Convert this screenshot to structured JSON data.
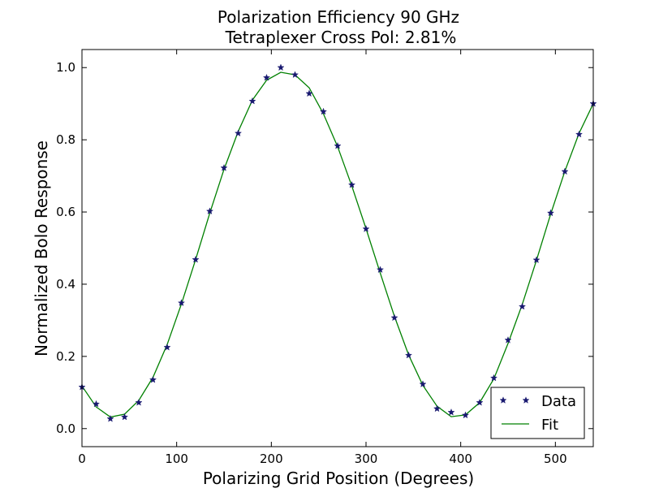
{
  "chart_data": {
    "type": "scatter",
    "title": [
      "Polarization Efficiency 90 GHz",
      "Tetraplexer Cross Pol: 2.81%"
    ],
    "xlabel": "Polarizing Grid Position (Degrees)",
    "ylabel": "Normalized Bolo Response",
    "xlim": [
      0,
      540
    ],
    "ylim": [
      -0.05,
      1.05
    ],
    "xticks": [
      0,
      100,
      200,
      300,
      400,
      500
    ],
    "xtick_labels": [
      "0",
      "100",
      "200",
      "300",
      "400",
      "500"
    ],
    "yticks": [
      0.0,
      0.2,
      0.4,
      0.6,
      0.8,
      1.0
    ],
    "ytick_labels": [
      "0.0",
      "0.2",
      "0.4",
      "0.6",
      "0.8",
      "1.0"
    ],
    "grid": false,
    "legend_position": "lower-right",
    "series": [
      {
        "name": "Data",
        "kind": "scatter",
        "marker": "star",
        "color": "#191970",
        "x": [
          0,
          15,
          30,
          45,
          60,
          75,
          90,
          105,
          120,
          135,
          150,
          165,
          180,
          195,
          210,
          225,
          240,
          255,
          270,
          285,
          300,
          315,
          330,
          345,
          360,
          375,
          390,
          405,
          420,
          435,
          450,
          465,
          480,
          495,
          510,
          525,
          540
        ],
        "y": [
          0.115,
          0.068,
          0.027,
          0.032,
          0.072,
          0.135,
          0.225,
          0.348,
          0.468,
          0.602,
          0.722,
          0.818,
          0.907,
          0.972,
          1.0,
          0.98,
          0.928,
          0.878,
          0.783,
          0.675,
          0.553,
          0.44,
          0.307,
          0.203,
          0.123,
          0.055,
          0.045,
          0.037,
          0.072,
          0.14,
          0.245,
          0.338,
          0.467,
          0.597,
          0.712,
          0.815,
          0.9
        ]
      },
      {
        "name": "Fit",
        "kind": "line",
        "color": "#008000",
        "x": [
          0,
          15,
          30,
          45,
          60,
          75,
          90,
          105,
          120,
          135,
          150,
          165,
          180,
          195,
          210,
          225,
          240,
          255,
          270,
          285,
          300,
          315,
          330,
          345,
          360,
          375,
          390,
          405,
          420,
          435,
          450,
          465,
          480,
          495,
          510,
          525,
          540
        ],
        "y": [
          0.118,
          0.06,
          0.032,
          0.04,
          0.078,
          0.142,
          0.233,
          0.345,
          0.468,
          0.597,
          0.718,
          0.823,
          0.91,
          0.965,
          0.987,
          0.98,
          0.944,
          0.872,
          0.781,
          0.672,
          0.554,
          0.431,
          0.311,
          0.204,
          0.12,
          0.062,
          0.033,
          0.038,
          0.072,
          0.138,
          0.236,
          0.344,
          0.466,
          0.594,
          0.713,
          0.818,
          0.9
        ]
      }
    ]
  },
  "colors": {
    "data_marker": "#191970",
    "fit_line": "#008000",
    "axes": "#000000",
    "background": "#ffffff"
  }
}
